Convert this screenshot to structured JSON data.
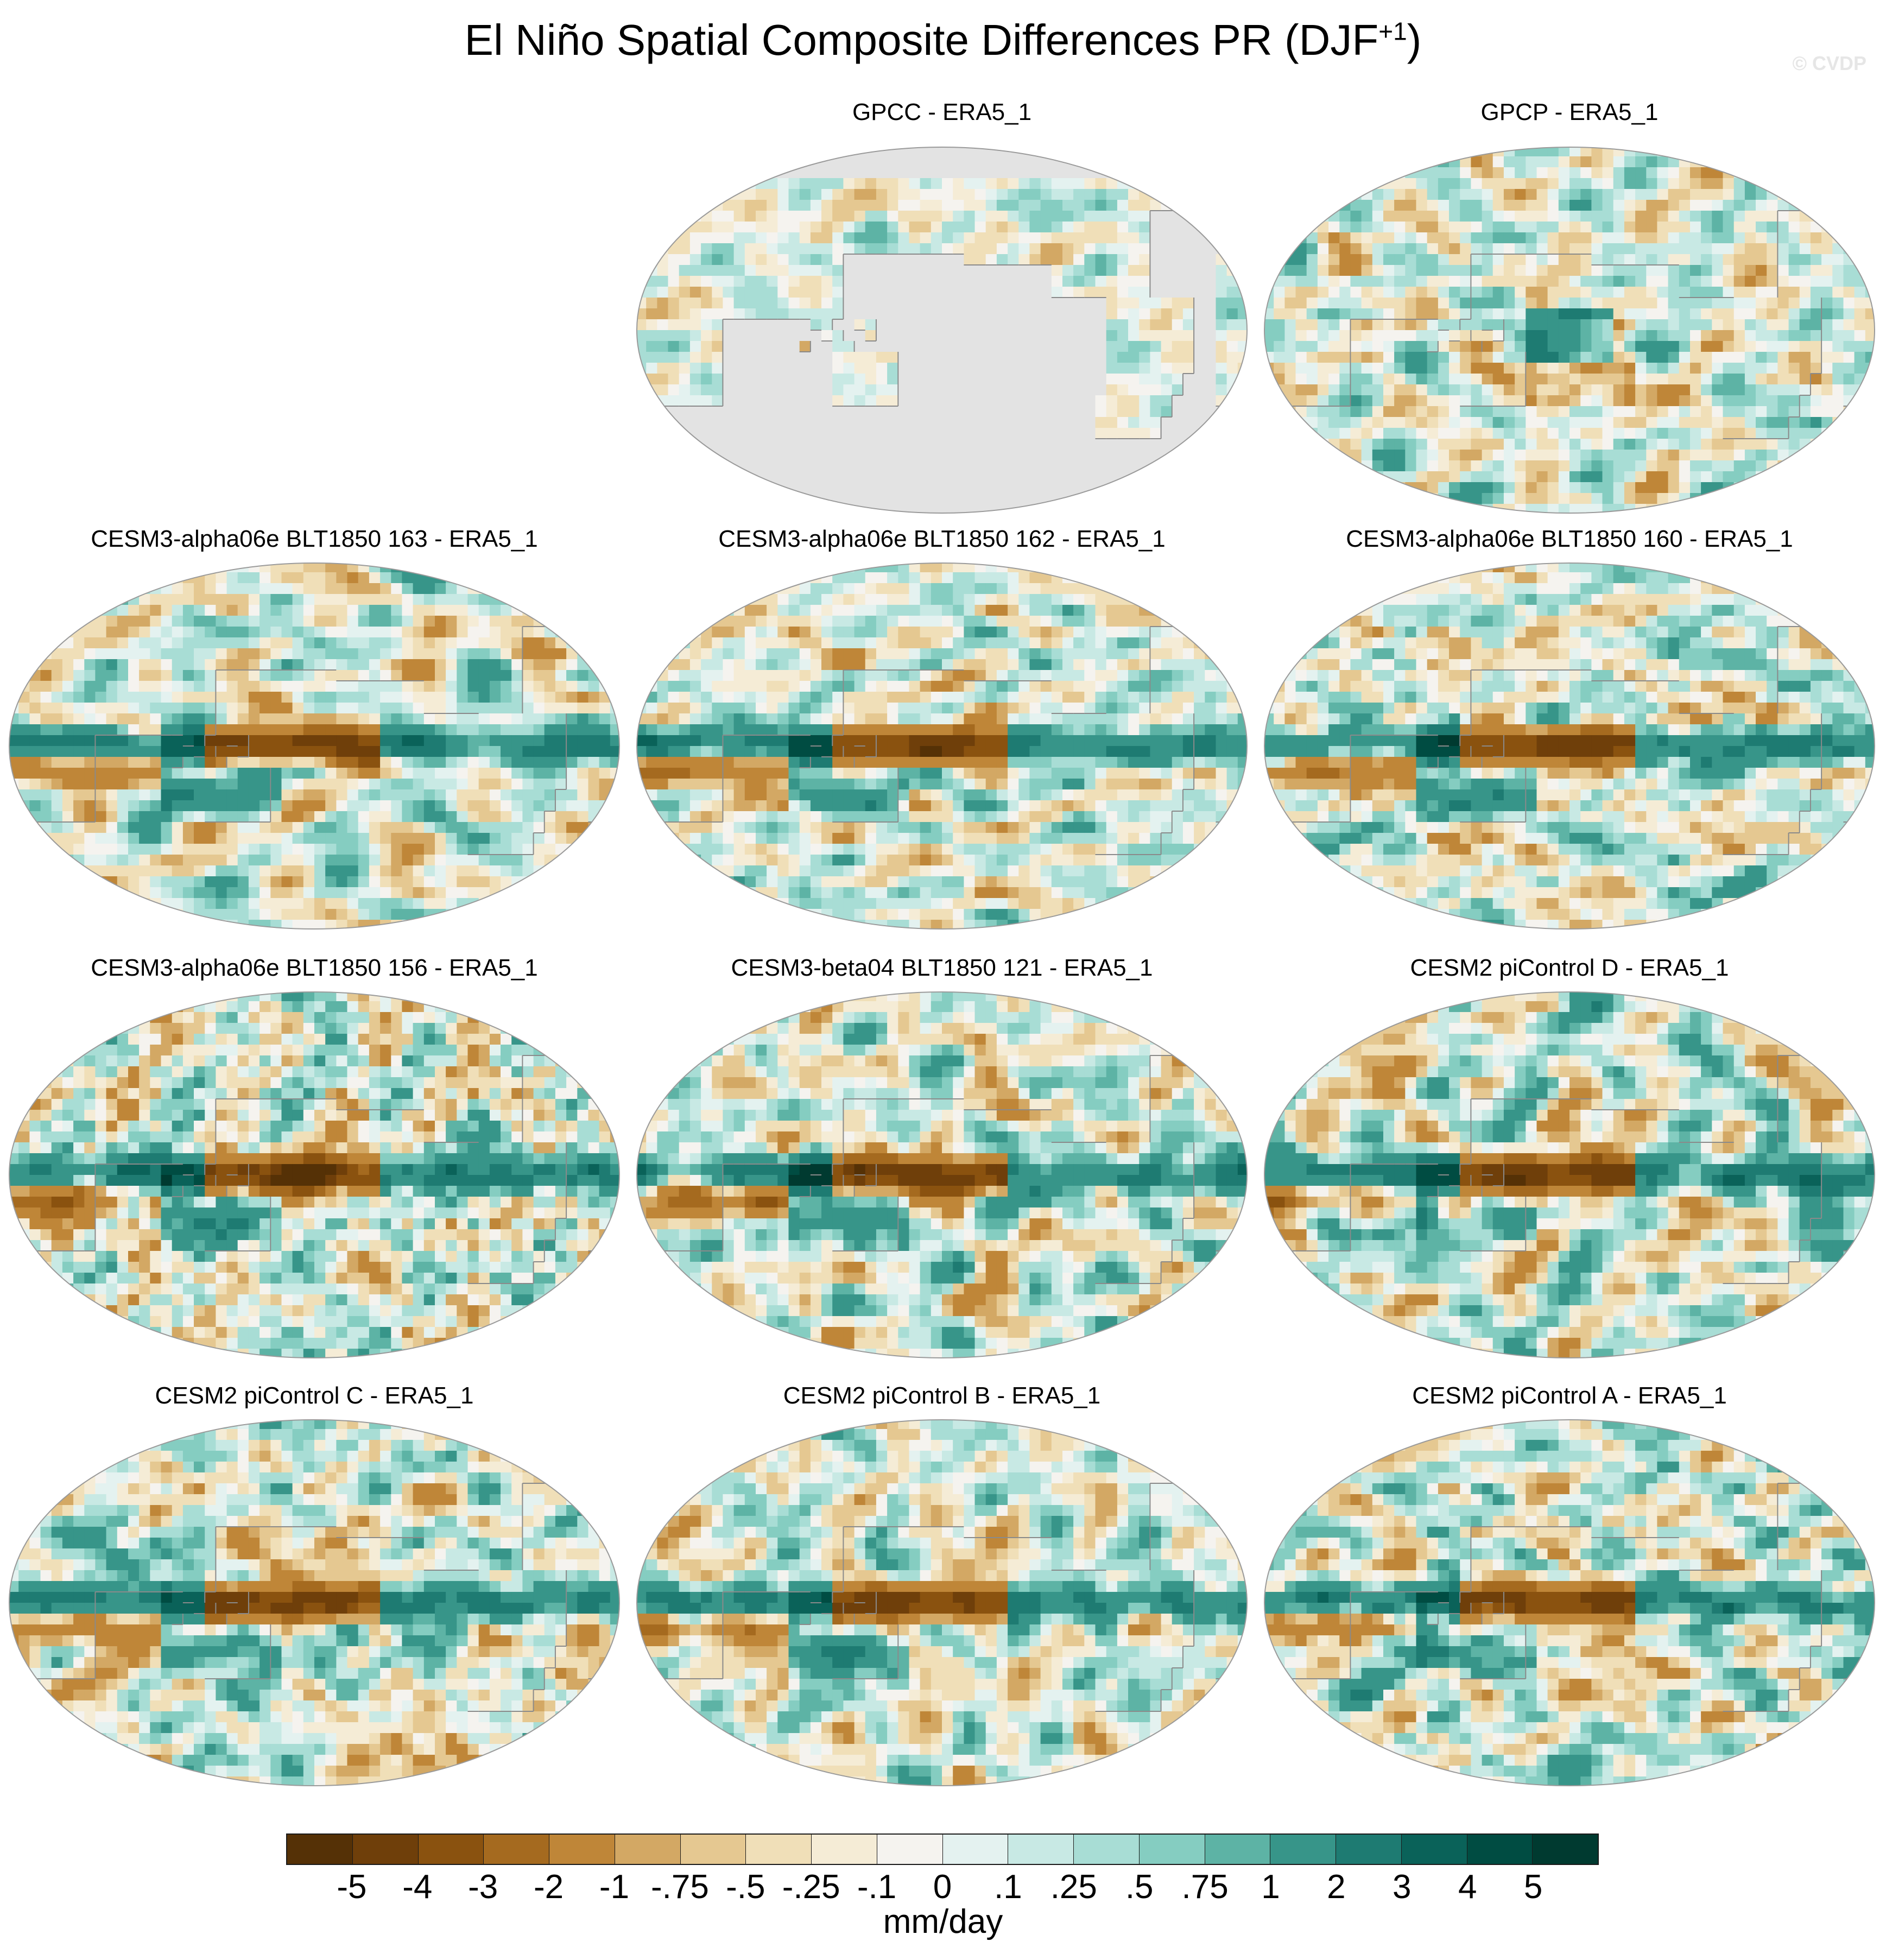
{
  "figure": {
    "title_main": "El Niño Spatial Composite Differences PR (DJF",
    "title_sup": "+1",
    "title_end": ")",
    "watermark": "© CVDP"
  },
  "panels": [
    {
      "title": "GPCC - ERA5_1",
      "type": "sparse-land",
      "seed": 11
    },
    {
      "title": "GPCP - ERA5_1",
      "type": "obs",
      "seed": 23
    },
    {
      "title": "CESM3-alpha06e BLT1850 163 - ERA5_1",
      "type": "model",
      "seed": 37
    },
    {
      "title": "CESM3-alpha06e BLT1850 162 - ERA5_1",
      "type": "model",
      "seed": 41
    },
    {
      "title": "CESM3-alpha06e BLT1850 160 - ERA5_1",
      "type": "model",
      "seed": 53
    },
    {
      "title": "CESM3-alpha06e BLT1850 156 - ERA5_1",
      "type": "model",
      "seed": 67
    },
    {
      "title": "CESM3-beta04 BLT1850 121 - ERA5_1",
      "type": "model",
      "seed": 71
    },
    {
      "title": "CESM2 piControl D - ERA5_1",
      "type": "model",
      "seed": 83
    },
    {
      "title": "CESM2 piControl C - ERA5_1",
      "type": "model",
      "seed": 97
    },
    {
      "title": "CESM2 piControl B - ERA5_1",
      "type": "model",
      "seed": 101
    },
    {
      "title": "CESM2 piControl A - ERA5_1",
      "type": "model",
      "seed": 113
    }
  ],
  "colorbar": {
    "unit": "mm/day",
    "tick_labels": [
      "-5",
      "-4",
      "-3",
      "-2",
      "-1",
      "-.75",
      "-.5",
      "-.25",
      "-.1",
      "0",
      ".1",
      ".25",
      ".5",
      ".75",
      "1",
      "2",
      "3",
      "4",
      "5"
    ],
    "colors": [
      "#553106",
      "#6f3f0a",
      "#8a520f",
      "#a56a1f",
      "#bf8638",
      "#d3a864",
      "#e5c891",
      "#f0dfb8",
      "#f5ecd6",
      "#f5f3ef",
      "#e4f2f0",
      "#c8e9e4",
      "#a8ddd5",
      "#85cdc1",
      "#5db3a5",
      "#379589",
      "#1e7b72",
      "#0a6259",
      "#004c42",
      "#003a30"
    ],
    "missing_color": "#e3e3e3"
  }
}
